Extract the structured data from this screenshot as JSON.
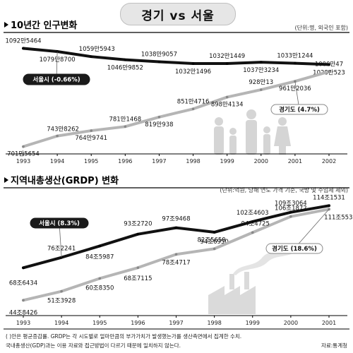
{
  "title": "경기 vs 서울",
  "footnote": [
    "( )안은 평균증감률.  GRDP는 각 시도별로 얼마만큼의 부가가치가 발생했는가를 생산측면에서 집계한 수치.",
    "국내총생산(GDP)과는 이용 자료와 접근방법이 다르기 때문에 일치하지 않는다."
  ],
  "source": "자료:통계청",
  "chart_data": [
    {
      "type": "line",
      "title": "10년간 인구변화",
      "unit_note": "(단위:명, 외국인 포함)",
      "categories": [
        "1993",
        "1994",
        "1995",
        "1996",
        "1997",
        "1998",
        "1999",
        "2000",
        "2001",
        "2002"
      ],
      "ylim": [
        6500000,
        11500000
      ],
      "series": [
        {
          "name": "서울시 (-0.66%)",
          "color": "#111111",
          "values": [
            10925464,
            10798700,
            10595943,
            10469852,
            10389057,
            10321496,
            10321449,
            10373234,
            10331244,
            10280523
          ],
          "labels": [
            "1092만5464",
            "1079만8700",
            "1059만5943",
            "1046만9852",
            "1038만9057",
            "1032만1496",
            "1032만1449",
            "1037만3234",
            "1033만1244",
            "1028만523"
          ]
        },
        {
          "name": "경기도 (4.7%)",
          "color": "#b5b5b5",
          "values": [
            7015654,
            7438262,
            7649741,
            7811468,
            8190938,
            8514716,
            8984134,
            9280013,
            9612036,
            10000047
          ],
          "labels": [
            "701만5654",
            "743만8262",
            "764만9741",
            "781만1468",
            "819만938",
            "851만4716",
            "898만4134",
            "928만13",
            "961만2036",
            "1000만47"
          ]
        }
      ]
    },
    {
      "type": "line",
      "title": "지역내총생산(GRDP) 변화",
      "unit_note": "(단위:억원, 당해 연도 가격 기준, 국방 및 수입세 제외)",
      "categories": [
        "1993",
        "1994",
        "1995",
        "1996",
        "1997",
        "1998",
        "1999",
        "2000",
        "2001"
      ],
      "ylim": [
        300000,
        1200000
      ],
      "series": [
        {
          "name": "서울시 (8.3%)",
          "color": "#111111",
          "values": [
            686434,
            762241,
            845987,
            932720,
            979468,
            946950,
            1024603,
            1093064,
            1141531
          ],
          "labels": [
            "68조6434",
            "76조2241",
            "84조5987",
            "93조2720",
            "97조9468",
            "94조6950",
            "102조4603",
            "109조3064",
            "114조1531"
          ]
        },
        {
          "name": "경기도 (18.6%)",
          "color": "#b5b5b5",
          "values": [
            448426,
            513928,
            608350,
            687115,
            784717,
            825659,
            944725,
            1061872,
            1115537
          ],
          "labels": [
            "44조8426",
            "51조3928",
            "60조8350",
            "68조7115",
            "78조4717",
            "82조5659",
            "94조4725",
            "106조1872",
            "111조5537"
          ]
        }
      ]
    }
  ]
}
